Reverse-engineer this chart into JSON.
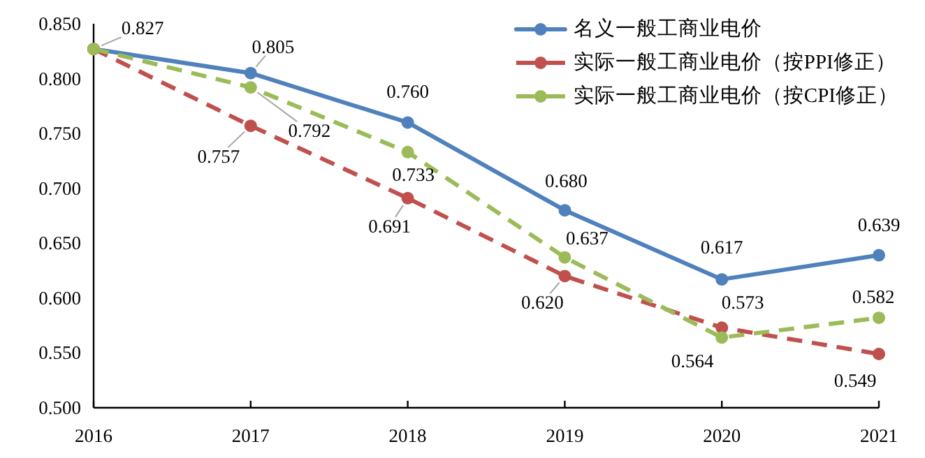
{
  "chart_data": {
    "type": "line",
    "x": [
      2016,
      2017,
      2018,
      2019,
      2020,
      2021
    ],
    "xlim": [
      2016,
      2021
    ],
    "xticks": [
      2016,
      2017,
      2018,
      2019,
      2020,
      2021
    ],
    "ylim": [
      0.5,
      0.85
    ],
    "yticks": [
      {
        "value": 0.5,
        "label": "0.500"
      },
      {
        "value": 0.55,
        "label": "0.550"
      },
      {
        "value": 0.6,
        "label": "0.600"
      },
      {
        "value": 0.65,
        "label": "0.650"
      },
      {
        "value": 0.7,
        "label": "0.700"
      },
      {
        "value": 0.75,
        "label": "0.750"
      },
      {
        "value": 0.8,
        "label": "0.800"
      },
      {
        "value": 0.85,
        "label": "0.850"
      }
    ],
    "legend": "top right",
    "marker": "circle",
    "series": [
      {
        "name": "名义一般工商业电价",
        "color": "#4f81bd",
        "line_style": "solid",
        "values": [
          0.827,
          0.805,
          0.76,
          0.68,
          0.617,
          0.639
        ],
        "value_labels": [
          "0.827",
          "0.805",
          "0.760",
          "0.680",
          "0.617",
          "0.639"
        ]
      },
      {
        "name": "实际一般工商业电价（按PPI修正）",
        "color": "#c0504d",
        "line_style": "dashed",
        "values": [
          0.827,
          0.757,
          0.691,
          0.62,
          0.573,
          0.549
        ],
        "value_labels": [
          null,
          "0.757",
          "0.691",
          "0.620",
          "0.573",
          "0.549"
        ]
      },
      {
        "name": "实际一般工商业电价（按CPI修正）",
        "color": "#9bbb59",
        "line_style": "dashed",
        "values": [
          0.827,
          0.792,
          0.733,
          0.637,
          0.564,
          0.582
        ],
        "value_labels": [
          null,
          "0.792",
          "0.733",
          "0.637",
          "0.564",
          "0.582"
        ]
      }
    ]
  }
}
